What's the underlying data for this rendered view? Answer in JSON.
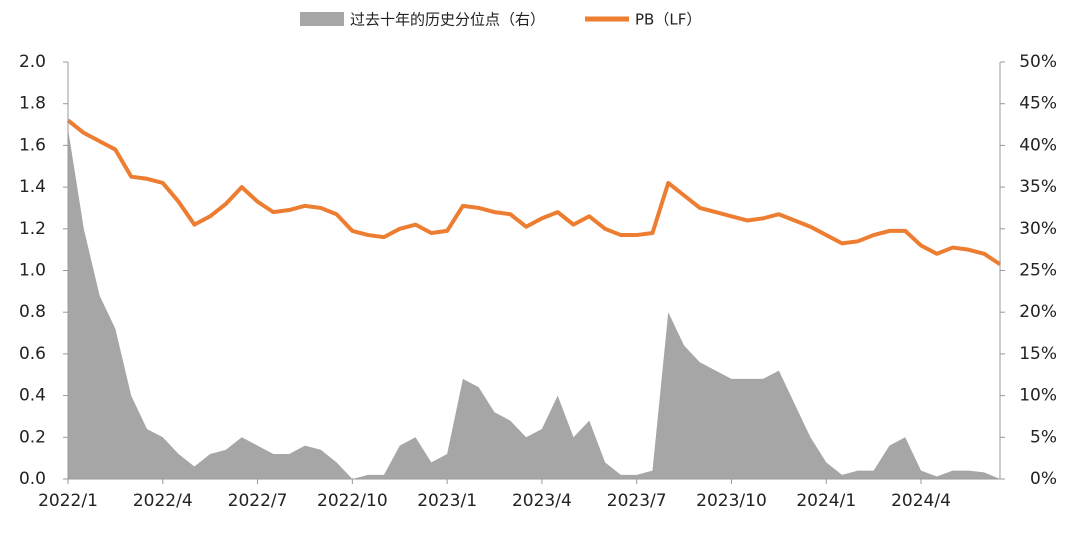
{
  "chart_data": {
    "type": "line",
    "categories": [
      "2022/1",
      null,
      null,
      null,
      null,
      null,
      "2022/4",
      null,
      null,
      null,
      null,
      null,
      "2022/7",
      null,
      null,
      null,
      null,
      null,
      "2022/10",
      null,
      null,
      null,
      null,
      null,
      "2023/1",
      null,
      null,
      null,
      null,
      null,
      "2023/4",
      null,
      null,
      null,
      null,
      null,
      "2023/7",
      null,
      null,
      null,
      null,
      null,
      "2023/10",
      null,
      null,
      null,
      null,
      null,
      "2024/1",
      null,
      null,
      null,
      null,
      null,
      "2024/4",
      null,
      null,
      null,
      null,
      null
    ],
    "series": [
      {
        "name": "过去十年的历史分位点（右）",
        "color": "#a6a6a6",
        "axis": "y2",
        "kind": "area",
        "values": [
          42,
          30,
          22,
          18,
          10,
          6,
          5,
          3,
          1.5,
          3,
          3.5,
          5,
          4,
          3,
          3,
          4,
          3.5,
          2,
          0,
          0.5,
          0.5,
          4,
          5,
          2,
          3,
          12,
          11,
          8,
          7,
          5,
          6,
          10,
          5,
          7,
          2,
          0.5,
          0.5,
          1,
          20,
          16,
          14,
          13,
          12,
          12,
          12,
          13,
          9,
          5,
          2,
          0.5,
          1,
          1,
          4,
          5,
          1,
          0.3,
          1,
          1,
          0.8,
          0
        ]
      },
      {
        "name": "PB（LF）",
        "color": "#ed7d31",
        "kind": "line",
        "values": [
          1.72,
          1.66,
          1.62,
          1.58,
          1.45,
          1.44,
          1.42,
          1.33,
          1.22,
          1.26,
          1.32,
          1.4,
          1.33,
          1.28,
          1.29,
          1.31,
          1.3,
          1.27,
          1.19,
          1.17,
          1.16,
          1.2,
          1.22,
          1.18,
          1.19,
          1.31,
          1.3,
          1.28,
          1.27,
          1.21,
          1.25,
          1.28,
          1.22,
          1.26,
          1.2,
          1.17,
          1.17,
          1.18,
          1.42,
          1.36,
          1.3,
          1.28,
          1.26,
          1.24,
          1.25,
          1.27,
          1.24,
          1.21,
          1.17,
          1.13,
          1.14,
          1.17,
          1.19,
          1.19,
          1.12,
          1.08,
          1.11,
          1.1,
          1.08,
          1.03
        ]
      }
    ],
    "ylim": [
      0,
      2
    ],
    "yticks": [
      {
        "value": 0,
        "label": "0.0"
      },
      0.2,
      0.4,
      0.6,
      0.8,
      {
        "value": 1,
        "label": "1.0"
      },
      1.2,
      1.4,
      1.6,
      1.8,
      {
        "value": 2,
        "label": "2.0"
      }
    ],
    "y2lim": [
      0,
      50
    ],
    "y2ticks": [
      {
        "value": 0,
        "label": "0%"
      },
      {
        "value": 5,
        "label": "5%"
      },
      {
        "value": 10,
        "label": "10%"
      },
      {
        "value": 15,
        "label": "15%"
      },
      {
        "value": 20,
        "label": "20%"
      },
      {
        "value": 25,
        "label": "25%"
      },
      {
        "value": 30,
        "label": "30%"
      },
      {
        "value": 35,
        "label": "35%"
      },
      {
        "value": 40,
        "label": "40%"
      },
      {
        "value": 45,
        "label": "45%"
      },
      {
        "value": 50,
        "label": "50%"
      }
    ],
    "legend": "top"
  }
}
